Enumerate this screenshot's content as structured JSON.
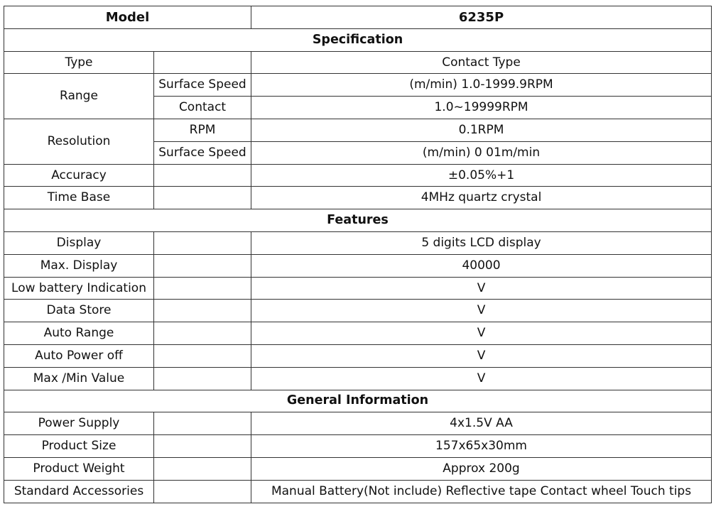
{
  "header": {
    "label": "Model",
    "value": "6235P"
  },
  "sections": {
    "specification": "Specification",
    "features": "Features",
    "general": "General Information"
  },
  "spec": {
    "type": {
      "label": "Type",
      "value": "Contact Type"
    },
    "range": {
      "label": "Range",
      "surface_label": "Surface Speed",
      "surface_value": "(m/min) 1.0-1999.9RPM",
      "contact_label": "Contact",
      "contact_value": "1.0~19999RPM"
    },
    "resolution": {
      "label": "Resolution",
      "rpm_label": "RPM",
      "rpm_value": "0.1RPM",
      "surface_label": "Surface Speed",
      "surface_value": "(m/min) 0 01m/min"
    },
    "accuracy": {
      "label": "Accuracy",
      "value": "±0.05%+1"
    },
    "time_base": {
      "label": "Time Base",
      "value": "4MHz quartz crystal"
    }
  },
  "features": {
    "display": {
      "label": "Display",
      "value": "5 digits LCD display"
    },
    "max_display": {
      "label": "Max. Display",
      "value": "40000"
    },
    "low_battery": {
      "label": "Low battery Indication",
      "value": "V"
    },
    "data_store": {
      "label": "Data Store",
      "value": "V"
    },
    "auto_range": {
      "label": "Auto Range",
      "value": "V"
    },
    "auto_power_off": {
      "label": "Auto Power off",
      "value": "V"
    },
    "max_min": {
      "label": "Max /Min Value",
      "value": "V"
    }
  },
  "general": {
    "power_supply": {
      "label": "Power Supply",
      "value": "4x1.5V AA"
    },
    "product_size": {
      "label": "Product Size",
      "value": "157x65x30mm"
    },
    "product_weight": {
      "label": "Product Weight",
      "value": "Approx 200g"
    },
    "accessories": {
      "label": "Standard Accessories",
      "value": "Manual Battery(Not include) Reflective tape Contact wheel Touch tips"
    }
  }
}
